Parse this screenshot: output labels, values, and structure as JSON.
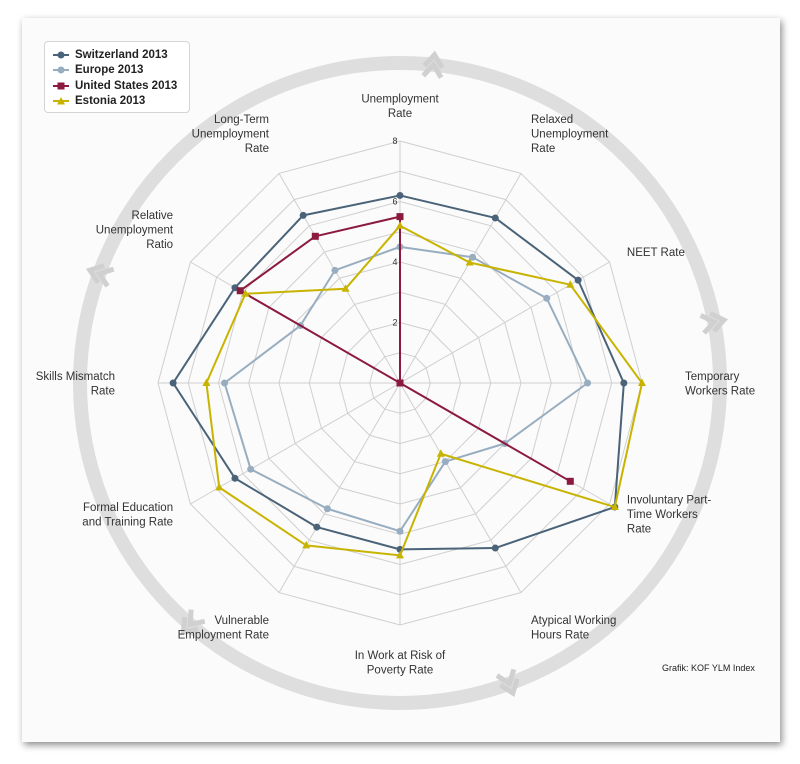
{
  "chart_data": {
    "type": "radar",
    "axes": [
      "Unemployment Rate",
      "Relaxed Unemployment Rate",
      "NEET Rate",
      "Temporary Workers Rate",
      "Involuntary Part-Time Workers Rate",
      "Atypical Working Hours Rate",
      "In Work at Risk of Poverty Rate",
      "Vulnerable Employment Rate",
      "Formal Education and Training Rate",
      "Skills Mismatch Rate",
      "Relative Unemployment Ratio",
      "Long-Term Unemployment Rate"
    ],
    "axis_label_lines": [
      [
        "Unemployment",
        "Rate"
      ],
      [
        "Relaxed",
        "Unemployment",
        "Rate"
      ],
      [
        "NEET Rate"
      ],
      [
        "Temporary",
        "Workers Rate"
      ],
      [
        "Involuntary Part-",
        "Time Workers",
        "Rate"
      ],
      [
        "Atypical Working",
        "Hours Rate"
      ],
      [
        "In Work at Risk of",
        "Poverty Rate"
      ],
      [
        "Vulnerable",
        "Employment Rate"
      ],
      [
        "Formal Education",
        "and Training Rate"
      ],
      [
        "Skills Mismatch",
        "Rate"
      ],
      [
        "Relative",
        "Unemployment",
        "Ratio"
      ],
      [
        "Long-Term",
        "Unemployment",
        "Rate"
      ]
    ],
    "rlim": [
      0,
      8
    ],
    "ticks": [
      0,
      2,
      4,
      6,
      8
    ],
    "tick_labels": [
      "2",
      "4",
      "6",
      "8"
    ],
    "grid": true,
    "legend_position": "top-left",
    "series": [
      {
        "name": "Switzerland 2013",
        "color": "#4a6378",
        "marker": "circle",
        "values": [
          6.2,
          6.3,
          6.8,
          7.4,
          8.2,
          6.3,
          5.5,
          5.5,
          6.3,
          7.5,
          6.3,
          6.4
        ]
      },
      {
        "name": "Europe 2013",
        "color": "#98aec0",
        "marker": "circle",
        "values": [
          4.5,
          4.8,
          5.6,
          6.2,
          4.0,
          3.0,
          4.9,
          4.8,
          5.7,
          5.8,
          3.8,
          4.3
        ]
      },
      {
        "name": "United States 2013",
        "color": "#8b1a3e",
        "marker": "square",
        "values": [
          5.5,
          0,
          0,
          0,
          6.5,
          0,
          0,
          0,
          0,
          0,
          6.1,
          5.6
        ]
      },
      {
        "name": "Estonia 2013",
        "color": "#c8b400",
        "marker": "triangle",
        "values": [
          5.2,
          4.6,
          6.5,
          8.0,
          8.2,
          2.7,
          5.7,
          6.2,
          6.9,
          6.4,
          5.9,
          3.6
        ]
      }
    ]
  },
  "credit": "Grafik: KOF YLM Index"
}
